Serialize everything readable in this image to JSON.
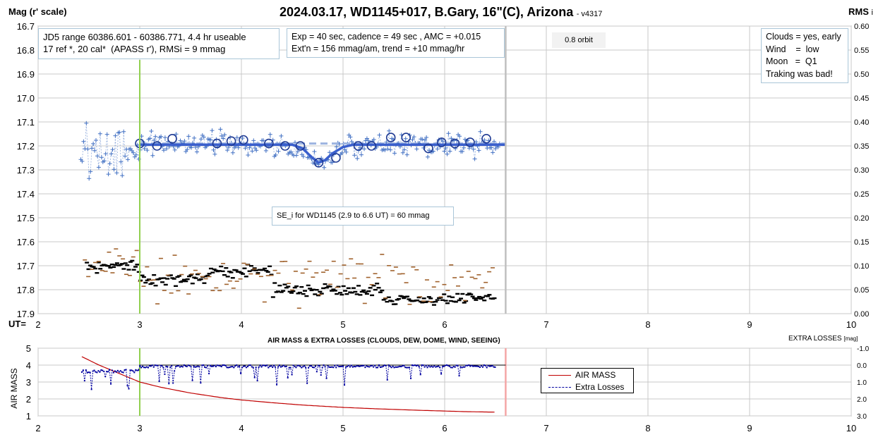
{
  "title": "2024.03.17, WD1145+017, B.Gary, 16\"(C), Arizona",
  "version": "- v4317",
  "left_axis_label": "Mag (r' scale)",
  "right_axis_label": "RMS",
  "right_axis_label_sub": "i",
  "ut_label": "UT=",
  "info_left": "JD5 range 60386.601 - 60386.771, 4.4 hr useable\n17 ref *, 20 cal*  (APASS r'), RMSi = 9 mmag",
  "info_mid": "Exp = 40 sec, cadence = 49 sec , AMC = +0.015\nExt'n = 156 mmag/am, trend = +10 mmag/hr",
  "orbit_label": "0.8 orbit",
  "conditions": "Clouds = yes, early\nWind    =  low\nMoon   =  Q1\nTraking was bad!",
  "se_label": "SE_i for WD1145 (2.9 to 6.6 UT) = 60 mmag",
  "lower_title": "AIR MASS & EXTRA LOSSES (CLOUDS, DEW, DOME, WIND, SEEING)",
  "lower_right_label": "EXTRA LOSSES",
  "lower_right_unit": "[mag]",
  "lower_left_label": "AIR MASS",
  "legend_airmass": "AIR MASS",
  "legend_extra": "Extra Losses",
  "colors": {
    "mag": "#4472c4",
    "model": "#3a5fcd",
    "rms_black": "#000000",
    "rms_brown": "#a0622d",
    "airmass": "#c00000",
    "extra": "#0000a0",
    "ut_start": "#92d050",
    "ut_end": "#bfbfbf",
    "ut_end_lower": "#f4a6a6"
  },
  "chart_data": [
    {
      "type": "scatter",
      "title": "2024.03.17, WD1145+017, B.Gary, 16\"(C), Arizona",
      "xlabel": "UT=",
      "ylabel": "Mag (r' scale)",
      "y2label": "RMS i",
      "xlim": [
        2,
        10
      ],
      "ylim": [
        16.7,
        17.9
      ],
      "y_inverted": true,
      "y2lim": [
        0.0,
        0.6
      ],
      "xticks": [
        "2",
        "3",
        "4",
        "5",
        "6",
        "7",
        "8",
        "9",
        "10"
      ],
      "yticks": [
        "16.7",
        "16.8",
        "16.9",
        "17.0",
        "17.1",
        "17.2",
        "17.3",
        "17.4",
        "17.5",
        "17.6",
        "17.7",
        "17.8",
        "17.9"
      ],
      "y2ticks": [
        "0.60",
        "0.55",
        "0.50",
        "0.45",
        "0.40",
        "0.35",
        "0.30",
        "0.25",
        "0.20",
        "0.15",
        "0.10",
        "0.05",
        "0.00"
      ],
      "grid": true,
      "ut_markers": [
        3.0,
        6.6
      ],
      "binned_mag": {
        "x": [
          3.0,
          3.17,
          3.32,
          3.76,
          3.9,
          4.02,
          4.27,
          4.43,
          4.58,
          4.76,
          4.93,
          5.15,
          5.28,
          5.47,
          5.62,
          5.84,
          5.97,
          6.1,
          6.25,
          6.41
        ],
        "y": [
          17.19,
          17.2,
          17.17,
          17.19,
          17.18,
          17.175,
          17.19,
          17.2,
          17.2,
          17.27,
          17.25,
          17.2,
          17.2,
          17.165,
          17.165,
          17.21,
          17.185,
          17.19,
          17.185,
          17.17
        ]
      },
      "model_line": {
        "x": [
          3.0,
          4.5,
          4.6,
          4.7,
          4.76,
          4.82,
          4.9,
          5.0,
          5.1,
          6.6
        ],
        "y": [
          17.195,
          17.195,
          17.21,
          17.25,
          17.27,
          17.26,
          17.23,
          17.205,
          17.195,
          17.195
        ]
      },
      "raw_mag_note": "individual r' magnitudes (blue +) scatter 17.0-17.4 between UT 2.4 and 6.5",
      "rms_note": "RMS values (black and brown dashes) on right axis, mostly 0.02-0.10"
    },
    {
      "type": "line",
      "title": "AIR MASS & EXTRA LOSSES (CLOUDS, DEW, DOME, WIND, SEEING)",
      "xlabel": "",
      "ylabel": "AIR MASS",
      "y2label": "EXTRA LOSSES [mag]",
      "xlim": [
        2,
        10
      ],
      "ylim": [
        1,
        5
      ],
      "y2lim": [
        -1.0,
        3.0
      ],
      "y2_inverted": true,
      "xticks": [
        "2",
        "3",
        "4",
        "5",
        "6",
        "7",
        "8",
        "9",
        "10"
      ],
      "yticks": [
        "5",
        "4",
        "3",
        "2",
        "1"
      ],
      "y2ticks": [
        "-1.0",
        "0.0",
        "1.0",
        "2.0",
        "3.0"
      ],
      "grid": true,
      "series": [
        {
          "name": "AIR MASS",
          "x": [
            2.43,
            2.6,
            2.8,
            3.0,
            3.2,
            3.5,
            3.8,
            4.0,
            4.3,
            4.6,
            5.0,
            5.4,
            5.8,
            6.2,
            6.5
          ],
          "values": [
            4.5,
            4.0,
            3.5,
            3.0,
            2.7,
            2.35,
            2.08,
            1.94,
            1.78,
            1.64,
            1.5,
            1.4,
            1.32,
            1.25,
            1.22
          ]
        },
        {
          "name": "Extra Losses",
          "x": [
            2.43,
            6.5
          ],
          "values": [
            0.3,
            0.0
          ],
          "note": "dotted blue series mostly near 0.0 mag with dips to ~1.0"
        }
      ],
      "legend_position": "center-right"
    }
  ]
}
